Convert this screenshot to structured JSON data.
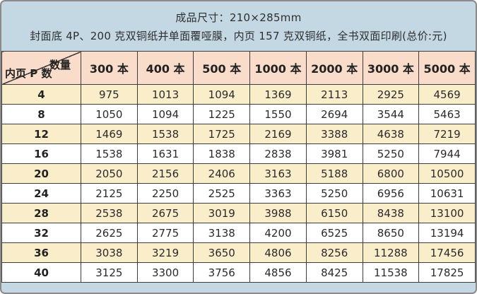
{
  "header": {
    "line1": "成品尺寸：210×285mm",
    "line2": "封面底 4P、200 克双铜纸并单面覆哑膜，内页 157 克双铜纸，全书双面印刷(总价:元)"
  },
  "table": {
    "corner": {
      "top_right": "数量",
      "bottom_left": "内页 P 数"
    },
    "columns": [
      "300 本",
      "400 本",
      "500 本",
      "1000 本",
      "2000 本",
      "3000 本",
      "5000 本"
    ],
    "rows": [
      {
        "pages": "4",
        "prices": [
          "975",
          "1013",
          "1094",
          "1369",
          "2113",
          "2925",
          "4569"
        ]
      },
      {
        "pages": "8",
        "prices": [
          "1050",
          "1094",
          "1225",
          "1550",
          "2694",
          "3544",
          "5463"
        ]
      },
      {
        "pages": "12",
        "prices": [
          "1469",
          "1538",
          "1725",
          "2169",
          "3388",
          "4638",
          "7219"
        ]
      },
      {
        "pages": "16",
        "prices": [
          "1538",
          "1631",
          "1838",
          "2838",
          "3981",
          "5250",
          "7944"
        ]
      },
      {
        "pages": "20",
        "prices": [
          "2050",
          "2156",
          "2406",
          "3163",
          "5188",
          "6800",
          "10500"
        ]
      },
      {
        "pages": "24",
        "prices": [
          "2125",
          "2250",
          "2525",
          "3363",
          "5250",
          "6956",
          "10631"
        ]
      },
      {
        "pages": "28",
        "prices": [
          "2538",
          "2675",
          "3019",
          "3988",
          "6150",
          "8438",
          "13100"
        ]
      },
      {
        "pages": "32",
        "prices": [
          "2625",
          "2775",
          "3138",
          "4200",
          "6525",
          "8650",
          "13194"
        ]
      },
      {
        "pages": "36",
        "prices": [
          "3038",
          "3219",
          "3650",
          "4806",
          "8256",
          "11288",
          "17456"
        ]
      },
      {
        "pages": "40",
        "prices": [
          "3125",
          "3300",
          "3756",
          "4856",
          "8425",
          "11538",
          "17825"
        ]
      }
    ]
  },
  "colors": {
    "header_bg": "#c4d8e4",
    "table_header_bg": "#fadcca",
    "row_alt_bg": "#f9edca",
    "row_bg": "#ffffff",
    "grid_line": "#3d3d3d",
    "outer_border": "#8a8a8a"
  }
}
